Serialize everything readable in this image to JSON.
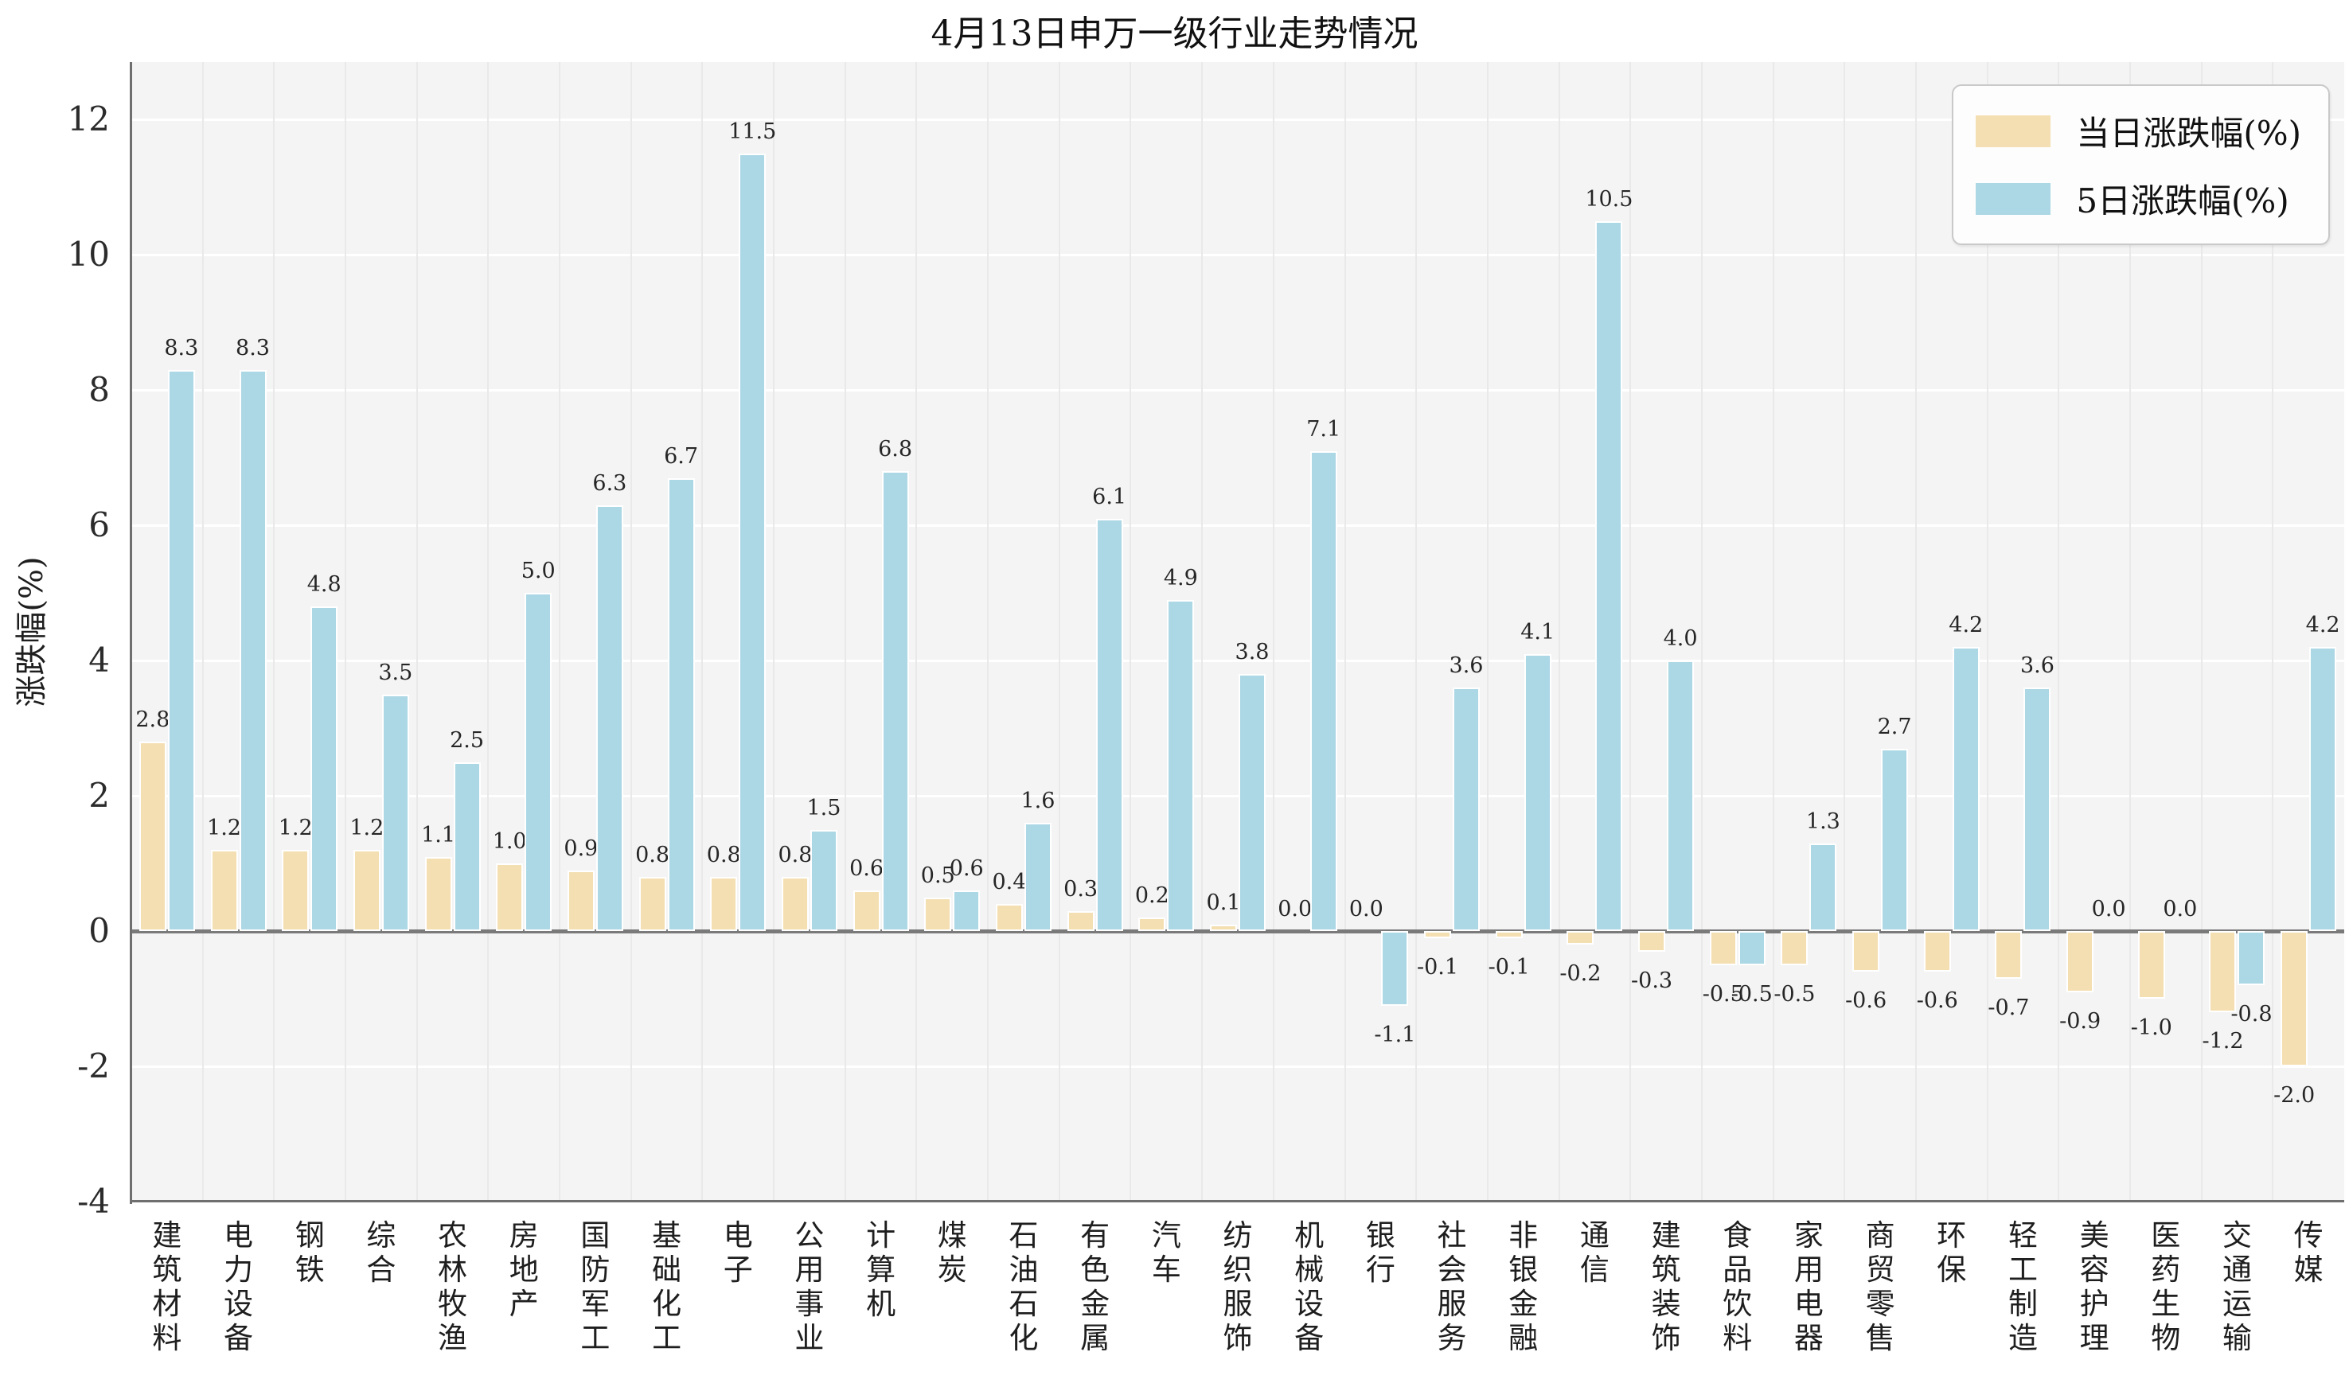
{
  "title": "4月13日申万一级行业走势情况",
  "colors": {
    "bar_daily": "#f4dfb2",
    "bar_5day": "#acd7e5",
    "plot_bg": "#f4f4f4",
    "grid": "#ffffff",
    "zero_line": "#7a7a7a",
    "spine": "#6f6f6f"
  },
  "legend": {
    "items": [
      {
        "label": "当日涨跌幅(%)",
        "color": "#f4dfb2"
      },
      {
        "label": "5日涨跌幅(%)",
        "color": "#acd7e5"
      }
    ]
  },
  "chart_data": {
    "type": "bar",
    "title": "4月13日申万一级行业走势情况",
    "xlabel": "",
    "ylabel": "涨跌幅(%)",
    "ylim": [
      -4,
      13
    ],
    "yticks": [
      12,
      10,
      8,
      6,
      4,
      2,
      0,
      -2,
      -4
    ],
    "grid": true,
    "legend_position": "upper right",
    "categories": [
      "建筑材料",
      "电力设备",
      "钢铁",
      "综合",
      "农林牧渔",
      "房地产",
      "国防军工",
      "基础化工",
      "电子",
      "公用事业",
      "计算机",
      "煤炭",
      "石油石化",
      "有色金属",
      "汽车",
      "纺织服饰",
      "机械设备",
      "银行",
      "社会服务",
      "非银金融",
      "通信",
      "建筑装饰",
      "食品饮料",
      "家用电器",
      "商贸零售",
      "环保",
      "轻工制造",
      "美容护理",
      "医药生物",
      "交通运输",
      "传媒"
    ],
    "series": [
      {
        "name": "当日涨跌幅(%)",
        "color": "#f4dfb2",
        "values": [
          2.8,
          1.2,
          1.2,
          1.2,
          1.1,
          1.0,
          0.9,
          0.8,
          0.8,
          0.8,
          0.6,
          0.5,
          0.4,
          0.3,
          0.2,
          0.1,
          0.0,
          0.0,
          -0.1,
          -0.1,
          -0.2,
          -0.3,
          -0.5,
          -0.5,
          -0.6,
          -0.6,
          -0.7,
          -0.9,
          -1.0,
          -1.2,
          -2.0
        ]
      },
      {
        "name": "5日涨跌幅(%)",
        "color": "#acd7e5",
        "values": [
          8.3,
          8.3,
          4.8,
          3.5,
          2.5,
          5.0,
          6.3,
          6.7,
          11.5,
          1.5,
          6.8,
          0.6,
          1.6,
          6.1,
          4.9,
          3.8,
          7.1,
          -1.1,
          3.6,
          4.1,
          10.5,
          4.0,
          -0.5,
          1.3,
          2.7,
          4.2,
          3.6,
          0.0,
          0.0,
          -0.8,
          4.2
        ]
      }
    ]
  }
}
